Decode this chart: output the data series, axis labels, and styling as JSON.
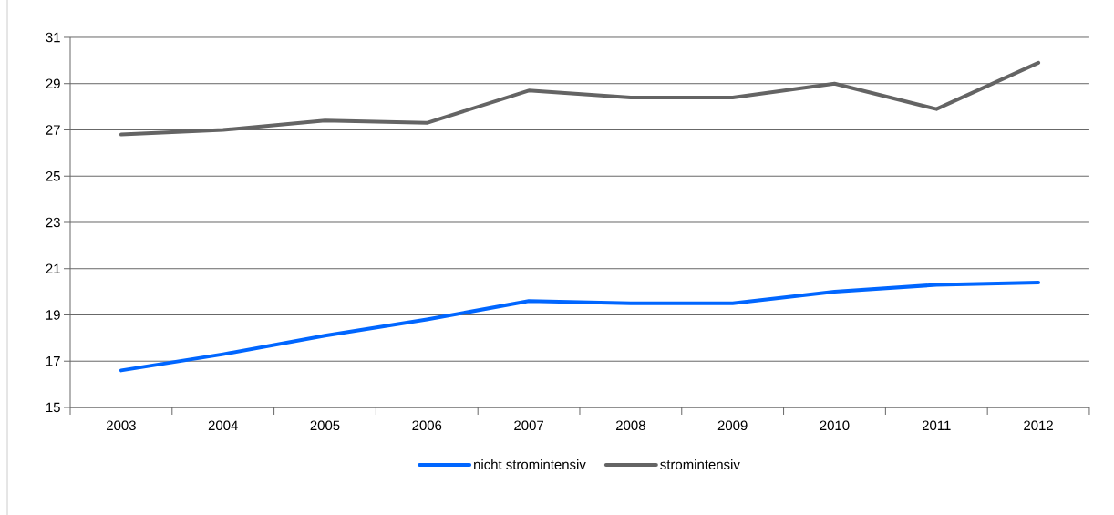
{
  "chart_data": {
    "type": "line",
    "categories": [
      "2003",
      "2004",
      "2005",
      "2006",
      "2007",
      "2008",
      "2009",
      "2010",
      "2011",
      "2012"
    ],
    "series": [
      {
        "name": "nicht stromintensiv",
        "color": "#0066ff",
        "values": [
          16.6,
          17.3,
          18.1,
          18.8,
          19.6,
          19.5,
          19.5,
          20.0,
          20.3,
          20.4
        ]
      },
      {
        "name": "stromintensiv",
        "color": "#646464",
        "values": [
          26.8,
          27.0,
          27.4,
          27.3,
          28.7,
          28.4,
          28.4,
          29.0,
          27.9,
          29.9
        ]
      }
    ],
    "ylim": [
      15,
      31
    ],
    "yticks": [
      15,
      17,
      19,
      21,
      23,
      25,
      27,
      29,
      31
    ],
    "grid": "y",
    "legend": "bottom",
    "marker": "none",
    "line_style": "solid"
  }
}
